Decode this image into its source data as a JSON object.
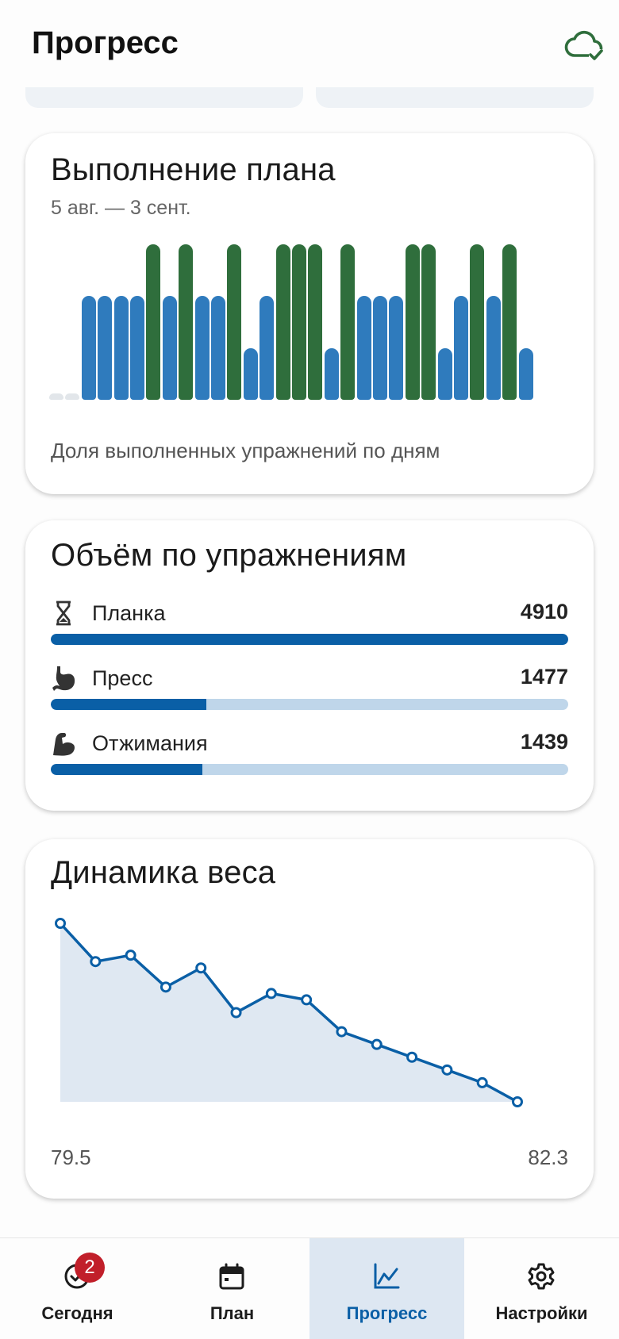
{
  "header": {
    "title": "Прогресс",
    "sync_icon": "cloud-check-icon"
  },
  "plan_card": {
    "title": "Выполнение плана",
    "date_range": "5 авг. — 3 сент.",
    "caption": "Доля выполненных упражнений по дням",
    "colors": {
      "full": "#2f6e3c",
      "partial": "#2f7bbd",
      "none": "#e2e6ea"
    },
    "chart_data": {
      "type": "bar",
      "values": [
        0,
        0,
        0.67,
        0.67,
        0.67,
        0.67,
        1,
        0.67,
        1,
        0.67,
        0.67,
        1,
        0.33,
        0.67,
        1,
        1,
        1,
        0.33,
        1,
        0.67,
        0.67,
        0.67,
        1,
        1,
        0.33,
        0.67,
        1,
        0.67,
        1,
        0.33
      ],
      "ylim": [
        0,
        1
      ]
    }
  },
  "volume_card": {
    "title": "Объём по упражнениям",
    "items": [
      {
        "name": "Планка",
        "value": "4910",
        "icon": "hourglass-icon",
        "fraction": 1.0
      },
      {
        "name": "Пресс",
        "value": "1477",
        "icon": "stomach-icon",
        "fraction": 0.3008
      },
      {
        "name": "Отжимания",
        "value": "1439",
        "icon": "flexed-arm-icon",
        "fraction": 0.2931
      }
    ]
  },
  "weight_card": {
    "title": "Динамика веса",
    "min_label": "79.5",
    "max_label": "82.3",
    "chart_data": {
      "type": "area",
      "values": [
        82.3,
        81.7,
        81.8,
        81.3,
        81.6,
        80.9,
        81.2,
        81.1,
        80.6,
        80.4,
        80.2,
        80.0,
        79.8,
        79.5
      ],
      "ylim": [
        79.5,
        82.3
      ],
      "color": "#0a5fa6"
    }
  },
  "nav": {
    "items": [
      {
        "label": "Сегодня",
        "icon": "check-circle-icon",
        "badge": "2"
      },
      {
        "label": "План",
        "icon": "calendar-icon"
      },
      {
        "label": "Прогресс",
        "icon": "chart-line-icon",
        "active": true
      },
      {
        "label": "Настройки",
        "icon": "gear-icon"
      }
    ]
  }
}
